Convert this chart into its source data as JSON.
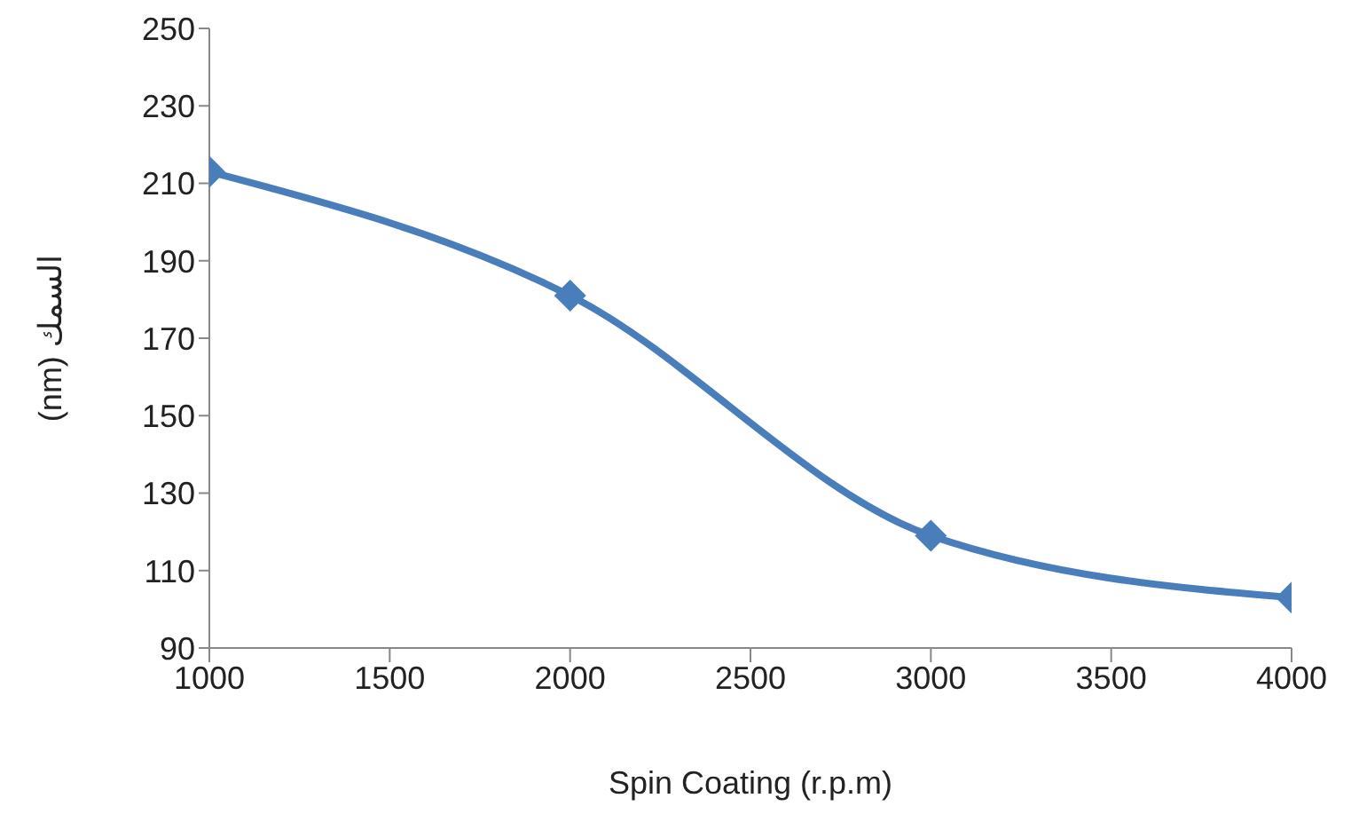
{
  "chart_data": {
    "type": "line",
    "xlabel": "Spin Coating (r.p.m)",
    "ylabel": "(nm)   السمك",
    "x": [
      1000,
      2000,
      3000,
      4000
    ],
    "series": [
      {
        "color": "#4a7ebb",
        "values": [
          213,
          181,
          119,
          103
        ]
      }
    ],
    "xlim": [
      1000,
      4000
    ],
    "xticks": [
      1000,
      1500,
      2000,
      2500,
      3000,
      3500,
      4000
    ],
    "ylim": [
      90,
      250
    ],
    "yticks": [
      90,
      110,
      130,
      150,
      170,
      190,
      210,
      230,
      250
    ],
    "grid": false,
    "legend": false,
    "marker": "diamond",
    "line_style": "solid"
  }
}
